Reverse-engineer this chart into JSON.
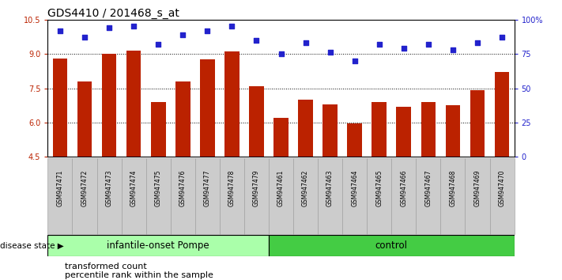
{
  "title": "GDS4410 / 201468_s_at",
  "samples": [
    "GSM947471",
    "GSM947472",
    "GSM947473",
    "GSM947474",
    "GSM947475",
    "GSM947476",
    "GSM947477",
    "GSM947478",
    "GSM947479",
    "GSM947461",
    "GSM947462",
    "GSM947463",
    "GSM947464",
    "GSM947465",
    "GSM947466",
    "GSM947467",
    "GSM947468",
    "GSM947469",
    "GSM947470"
  ],
  "bar_values": [
    8.8,
    7.8,
    9.0,
    9.15,
    6.9,
    7.78,
    8.78,
    9.1,
    7.6,
    6.2,
    7.0,
    6.78,
    5.95,
    6.88,
    6.7,
    6.88,
    6.75,
    7.4,
    8.2
  ],
  "percentile_values": [
    92,
    87,
    94,
    95,
    82,
    89,
    92,
    95,
    85,
    75,
    83,
    76,
    70,
    82,
    79,
    82,
    78,
    83,
    87
  ],
  "bar_color": "#BB2200",
  "dot_color": "#2222CC",
  "ylim_left": [
    4.5,
    10.5
  ],
  "ylim_right": [
    0,
    100
  ],
  "yticks_left": [
    4.5,
    6.0,
    7.5,
    9.0,
    10.5
  ],
  "yticks_right": [
    0,
    25,
    50,
    75,
    100
  ],
  "ytick_right_labels": [
    "0",
    "25",
    "50",
    "75",
    "100%"
  ],
  "hlines": [
    6.0,
    7.5,
    9.0
  ],
  "group1_label": "infantile-onset Pompe",
  "group2_label": "control",
  "group1_count": 9,
  "group2_count": 10,
  "disease_state_label": "disease state",
  "legend_bar_label": "transformed count",
  "legend_dot_label": "percentile rank within the sample",
  "bg_color_plot": "#FFFFFF",
  "bg_color_xtick": "#CCCCCC",
  "group1_color": "#AAFFAA",
  "group2_color": "#44CC44",
  "title_fontsize": 10,
  "tick_fontsize": 7,
  "group_label_fontsize": 8.5
}
